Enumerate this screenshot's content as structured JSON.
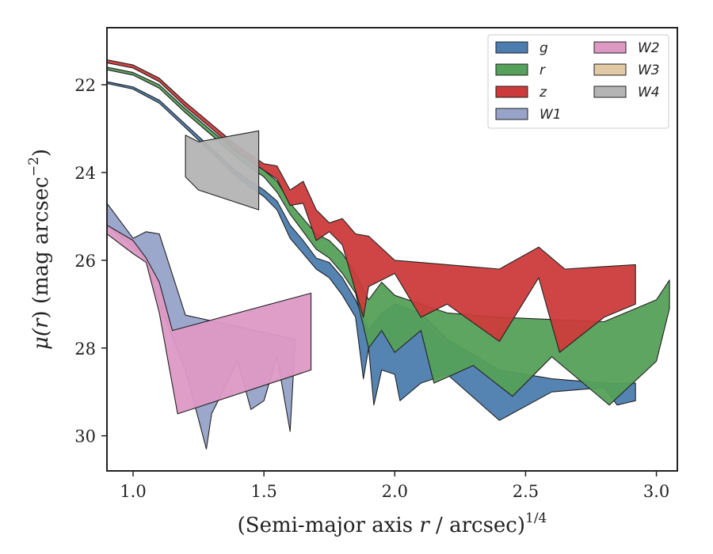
{
  "chart_data": {
    "type": "area",
    "xlabel_main": "(Semi-major axis ",
    "xlabel_var": "r",
    "xlabel_tail": " / arcsec)",
    "xlabel_sup": "1/4",
    "ylabel_main": "μ(",
    "ylabel_var": "r",
    "ylabel_tail": ") (mag arcsec",
    "ylabel_sup": "−2",
    "ylabel_close": ")",
    "xlim": [
      0.9,
      3.08
    ],
    "ylim": [
      30.8,
      20.7
    ],
    "y_inverted": true,
    "grid": false,
    "legend_position": "top-right",
    "legend_columns": 2,
    "x_ticks": [
      1.0,
      1.5,
      2.0,
      2.5,
      3.0
    ],
    "x_tick_labels": [
      "1.0",
      "1.5",
      "2.0",
      "2.5",
      "3.0"
    ],
    "y_ticks": [
      22,
      24,
      26,
      28,
      30
    ],
    "y_tick_labels": [
      "22",
      "24",
      "26",
      "28",
      "30"
    ],
    "series": [
      {
        "name": "g",
        "color": "#4c7dae",
        "upper": [
          [
            0.9,
            21.93
          ],
          [
            1.0,
            22.05
          ],
          [
            1.1,
            22.35
          ],
          [
            1.2,
            22.9
          ],
          [
            1.3,
            23.45
          ],
          [
            1.4,
            24.0
          ],
          [
            1.5,
            24.4
          ],
          [
            1.55,
            24.65
          ],
          [
            1.6,
            25.2
          ],
          [
            1.65,
            25.55
          ],
          [
            1.7,
            25.95
          ],
          [
            1.75,
            26.05
          ],
          [
            1.8,
            26.4
          ],
          [
            1.85,
            26.9
          ],
          [
            1.9,
            27.6
          ],
          [
            1.95,
            27.2
          ],
          [
            2.0,
            27.0
          ],
          [
            2.1,
            27.2
          ],
          [
            2.2,
            27.8
          ],
          [
            2.4,
            28.5
          ],
          [
            2.6,
            28.7
          ],
          [
            2.8,
            28.8
          ],
          [
            2.92,
            28.8
          ]
        ],
        "lower": [
          [
            0.9,
            21.97
          ],
          [
            1.0,
            22.1
          ],
          [
            1.1,
            22.42
          ],
          [
            1.2,
            22.98
          ],
          [
            1.3,
            23.55
          ],
          [
            1.4,
            24.12
          ],
          [
            1.5,
            24.55
          ],
          [
            1.55,
            24.85
          ],
          [
            1.6,
            25.5
          ],
          [
            1.65,
            25.85
          ],
          [
            1.7,
            26.2
          ],
          [
            1.75,
            26.4
          ],
          [
            1.8,
            26.8
          ],
          [
            1.85,
            27.3
          ],
          [
            1.88,
            28.7
          ],
          [
            1.9,
            28.0
          ],
          [
            1.92,
            29.3
          ],
          [
            1.95,
            28.5
          ],
          [
            2.0,
            28.6
          ],
          [
            2.02,
            29.2
          ],
          [
            2.1,
            28.8
          ],
          [
            2.2,
            28.6
          ],
          [
            2.4,
            29.65
          ],
          [
            2.6,
            29.0
          ],
          [
            2.8,
            28.9
          ],
          [
            2.85,
            29.3
          ],
          [
            2.92,
            29.2
          ]
        ]
      },
      {
        "name": "r",
        "color": "#55a05a",
        "upper": [
          [
            0.9,
            21.6
          ],
          [
            1.0,
            21.72
          ],
          [
            1.1,
            22.0
          ],
          [
            1.2,
            22.55
          ],
          [
            1.3,
            23.05
          ],
          [
            1.4,
            23.55
          ],
          [
            1.5,
            23.95
          ],
          [
            1.55,
            24.2
          ],
          [
            1.6,
            24.7
          ],
          [
            1.65,
            25.05
          ],
          [
            1.7,
            25.4
          ],
          [
            1.75,
            25.55
          ],
          [
            1.8,
            25.85
          ],
          [
            1.85,
            26.3
          ],
          [
            1.9,
            26.9
          ],
          [
            1.95,
            26.5
          ],
          [
            2.0,
            26.8
          ],
          [
            2.2,
            27.2
          ],
          [
            2.4,
            27.3
          ],
          [
            2.6,
            27.35
          ],
          [
            2.8,
            27.4
          ],
          [
            3.0,
            26.9
          ],
          [
            3.05,
            26.45
          ]
        ],
        "lower": [
          [
            0.9,
            21.66
          ],
          [
            1.0,
            21.78
          ],
          [
            1.1,
            22.08
          ],
          [
            1.2,
            22.64
          ],
          [
            1.3,
            23.15
          ],
          [
            1.4,
            23.68
          ],
          [
            1.5,
            24.1
          ],
          [
            1.55,
            24.45
          ],
          [
            1.6,
            24.95
          ],
          [
            1.65,
            25.35
          ],
          [
            1.7,
            25.75
          ],
          [
            1.75,
            25.95
          ],
          [
            1.8,
            26.3
          ],
          [
            1.85,
            26.75
          ],
          [
            1.9,
            28.0
          ],
          [
            1.95,
            27.6
          ],
          [
            2.0,
            28.1
          ],
          [
            2.1,
            27.6
          ],
          [
            2.15,
            28.8
          ],
          [
            2.3,
            28.4
          ],
          [
            2.45,
            29.1
          ],
          [
            2.6,
            28.2
          ],
          [
            2.82,
            29.3
          ],
          [
            3.0,
            28.3
          ],
          [
            3.05,
            27.1
          ]
        ]
      },
      {
        "name": "z",
        "color": "#cc3b3b",
        "upper": [
          [
            0.9,
            21.43
          ],
          [
            1.0,
            21.55
          ],
          [
            1.1,
            21.85
          ],
          [
            1.2,
            22.4
          ],
          [
            1.3,
            22.9
          ],
          [
            1.4,
            23.4
          ],
          [
            1.5,
            23.8
          ],
          [
            1.55,
            23.85
          ],
          [
            1.6,
            24.4
          ],
          [
            1.65,
            24.2
          ],
          [
            1.7,
            24.85
          ],
          [
            1.75,
            25.15
          ],
          [
            1.8,
            25.05
          ],
          [
            1.85,
            25.4
          ],
          [
            1.9,
            25.45
          ],
          [
            2.0,
            26.0
          ],
          [
            2.2,
            26.1
          ],
          [
            2.4,
            26.2
          ],
          [
            2.55,
            25.7
          ],
          [
            2.65,
            26.2
          ],
          [
            2.92,
            26.1
          ]
        ],
        "lower": [
          [
            0.9,
            21.5
          ],
          [
            1.0,
            21.62
          ],
          [
            1.1,
            21.93
          ],
          [
            1.2,
            22.5
          ],
          [
            1.3,
            23.0
          ],
          [
            1.4,
            23.52
          ],
          [
            1.5,
            23.95
          ],
          [
            1.55,
            24.15
          ],
          [
            1.6,
            24.75
          ],
          [
            1.65,
            24.7
          ],
          [
            1.7,
            25.55
          ],
          [
            1.75,
            25.35
          ],
          [
            1.8,
            25.65
          ],
          [
            1.85,
            26.7
          ],
          [
            1.88,
            27.3
          ],
          [
            1.9,
            26.6
          ],
          [
            2.0,
            26.3
          ],
          [
            2.1,
            27.3
          ],
          [
            2.2,
            27.0
          ],
          [
            2.4,
            27.85
          ],
          [
            2.55,
            26.4
          ],
          [
            2.63,
            28.1
          ],
          [
            2.8,
            27.3
          ],
          [
            2.92,
            27.0
          ]
        ]
      },
      {
        "name": "W1",
        "color": "#97a3c8",
        "upper": [
          [
            0.9,
            24.7
          ],
          [
            1.0,
            25.5
          ],
          [
            1.05,
            25.35
          ],
          [
            1.1,
            25.4
          ],
          [
            1.2,
            27.25
          ]
        ],
        "lower": [
          [
            0.9,
            25.2
          ],
          [
            1.0,
            25.7
          ],
          [
            1.05,
            26.0
          ],
          [
            1.1,
            27.0
          ],
          [
            1.2,
            28.5
          ],
          [
            1.28,
            30.3
          ],
          [
            1.3,
            29.5
          ],
          [
            1.4,
            28.3
          ],
          [
            1.45,
            29.4
          ],
          [
            1.5,
            29.2
          ],
          [
            1.55,
            28.2
          ],
          [
            1.6,
            29.9
          ],
          [
            1.62,
            27.8
          ]
        ]
      },
      {
        "name": "W2",
        "color": "#dd99c4",
        "upper": [
          [
            0.9,
            25.2
          ],
          [
            1.0,
            25.55
          ],
          [
            1.05,
            25.95
          ],
          [
            1.1,
            26.5
          ],
          [
            1.15,
            27.6
          ],
          [
            1.68,
            26.75
          ]
        ],
        "lower": [
          [
            0.9,
            25.4
          ],
          [
            1.0,
            25.85
          ],
          [
            1.05,
            26.05
          ],
          [
            1.1,
            27.2
          ],
          [
            1.17,
            29.5
          ],
          [
            1.68,
            28.5
          ]
        ]
      },
      {
        "name": "W3",
        "color": "#e0c9a4",
        "upper": [],
        "lower": []
      },
      {
        "name": "W4",
        "color": "#b4b4b4",
        "upper": [
          [
            1.2,
            23.15
          ],
          [
            1.25,
            23.3
          ],
          [
            1.48,
            23.05
          ]
        ],
        "lower": [
          [
            1.2,
            24.1
          ],
          [
            1.25,
            24.4
          ],
          [
            1.48,
            24.85
          ]
        ]
      }
    ]
  }
}
